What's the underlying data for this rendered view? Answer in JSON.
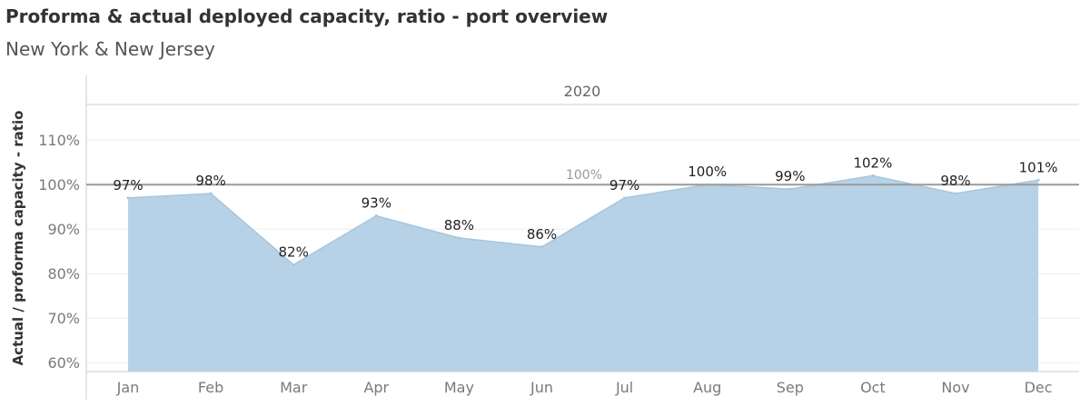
{
  "header": {
    "title": "Proforma & actual deployed capacity, ratio - port overview",
    "subtitle": "New York & New Jersey"
  },
  "chart_data": {
    "type": "area",
    "panel_label": "2020",
    "categories": [
      "Jan",
      "Feb",
      "Mar",
      "Apr",
      "May",
      "Jun",
      "Jul",
      "Aug",
      "Sep",
      "Oct",
      "Nov",
      "Dec"
    ],
    "values": [
      97,
      98,
      82,
      93,
      88,
      86,
      97,
      100,
      99,
      102,
      98,
      101
    ],
    "data_labels": [
      "97%",
      "98%",
      "82%",
      "93%",
      "88%",
      "86%",
      "97%",
      "100%",
      "99%",
      "102%",
      "98%",
      "101%"
    ],
    "ylabel": "Actual / proforma capacity - ratio",
    "ylim": [
      58,
      118
    ],
    "yticks": [
      60,
      70,
      80,
      90,
      100,
      110
    ],
    "ytick_labels": [
      "60%",
      "70%",
      "80%",
      "90%",
      "100%",
      "110%"
    ],
    "reference_line": {
      "value": 100,
      "label": "100%"
    },
    "grid": true,
    "colors": {
      "area": "#b7d2e6",
      "reference": "#9a9a9a"
    }
  }
}
